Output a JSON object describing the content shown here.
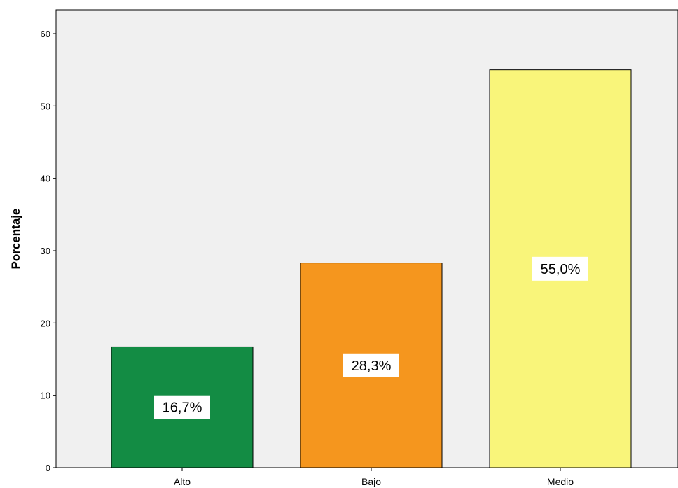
{
  "chart_data": {
    "type": "bar",
    "categories": [
      "Alto",
      "Bajo",
      "Medio"
    ],
    "values": [
      16.7,
      28.3,
      55.0
    ],
    "data_labels": [
      "16,7%",
      "28,3%",
      "55,0%"
    ],
    "bar_colors": [
      "#138c44",
      "#f5961e",
      "#f9f57a"
    ],
    "title": "",
    "xlabel": "",
    "ylabel": "Porcentaje",
    "ylim": [
      0,
      60
    ],
    "yticks": [
      0,
      10,
      20,
      30,
      40,
      50,
      60
    ],
    "grid": false,
    "legend": "none",
    "plot_background": "#f0f0f0"
  }
}
